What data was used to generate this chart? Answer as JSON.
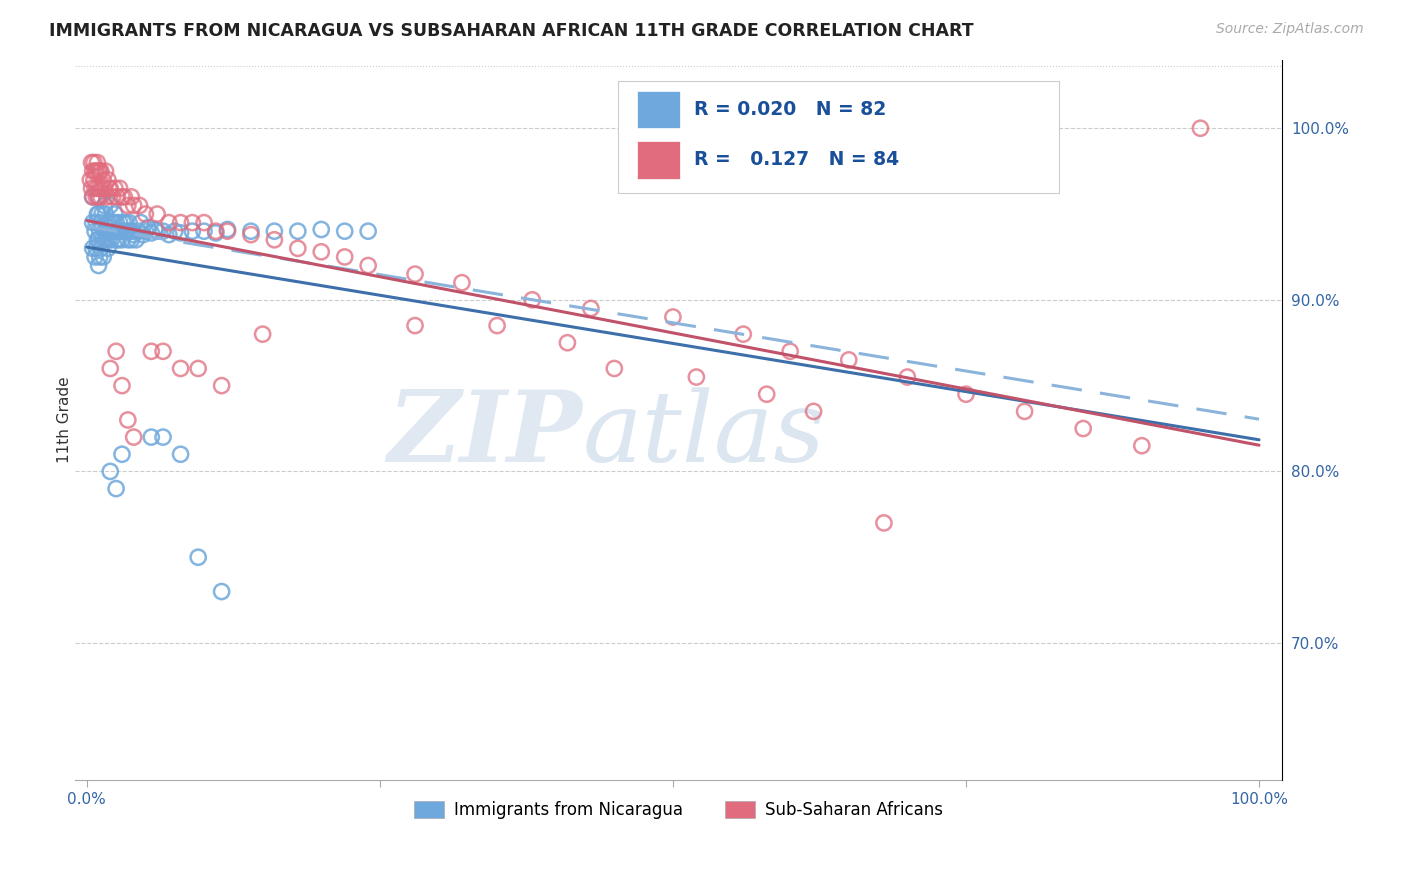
{
  "title": "IMMIGRANTS FROM NICARAGUA VS SUBSAHARAN AFRICAN 11TH GRADE CORRELATION CHART",
  "source": "Source: ZipAtlas.com",
  "ylabel": "11th Grade",
  "legend_blue_r": "0.020",
  "legend_blue_n": "82",
  "legend_pink_r": "0.127",
  "legend_pink_n": "84",
  "legend_label_blue": "Immigrants from Nicaragua",
  "legend_label_pink": "Sub-Saharan Africans",
  "blue_color": "#6fa8dc",
  "pink_color": "#e06c7e",
  "blue_line_color": "#3d6faa",
  "pink_line_color": "#c0526a",
  "blue_dashed_color": "#8ab4dc",
  "watermark_zip": "ZIP",
  "watermark_atlas": "atlas",
  "xlim": [
    -0.01,
    1.02
  ],
  "ylim": [
    0.62,
    1.04
  ],
  "yticks": [
    0.7,
    0.8,
    0.9,
    1.0
  ],
  "ytick_labels": [
    "70.0%",
    "80.0%",
    "90.0%",
    "100.0%"
  ],
  "xtick_positions": [
    0.0,
    0.25,
    0.5,
    0.75,
    1.0
  ],
  "xtick_labels": [
    "0.0%",
    "",
    "",
    "",
    "100.0%"
  ],
  "blue_x": [
    0.005,
    0.005,
    0.005,
    0.007,
    0.007,
    0.008,
    0.008,
    0.009,
    0.009,
    0.01,
    0.01,
    0.01,
    0.01,
    0.011,
    0.011,
    0.012,
    0.012,
    0.013,
    0.013,
    0.014,
    0.015,
    0.015,
    0.016,
    0.016,
    0.017,
    0.018,
    0.018,
    0.019,
    0.02,
    0.02,
    0.021,
    0.022,
    0.023,
    0.024,
    0.025,
    0.025,
    0.026,
    0.027,
    0.028,
    0.029,
    0.03,
    0.031,
    0.032,
    0.033,
    0.034,
    0.035,
    0.036,
    0.037,
    0.038,
    0.039,
    0.04,
    0.042,
    0.044,
    0.046,
    0.048,
    0.05,
    0.052,
    0.055,
    0.058,
    0.06,
    0.065,
    0.07,
    0.075,
    0.08,
    0.09,
    0.1,
    0.11,
    0.12,
    0.14,
    0.16,
    0.18,
    0.2,
    0.22,
    0.24,
    0.02,
    0.025,
    0.03,
    0.055,
    0.065,
    0.08,
    0.095,
    0.115
  ],
  "blue_y": [
    0.93,
    0.945,
    0.96,
    0.925,
    0.94,
    0.93,
    0.945,
    0.935,
    0.95,
    0.92,
    0.935,
    0.95,
    0.96,
    0.925,
    0.94,
    0.93,
    0.945,
    0.935,
    0.95,
    0.925,
    0.94,
    0.955,
    0.935,
    0.95,
    0.94,
    0.93,
    0.945,
    0.935,
    0.94,
    0.955,
    0.935,
    0.945,
    0.94,
    0.95,
    0.935,
    0.945,
    0.94,
    0.935,
    0.945,
    0.94,
    0.935,
    0.945,
    0.94,
    0.945,
    0.94,
    0.935,
    0.945,
    0.94,
    0.935,
    0.94,
    0.938,
    0.935,
    0.94,
    0.945,
    0.938,
    0.94,
    0.942,
    0.939,
    0.941,
    0.94,
    0.94,
    0.938,
    0.94,
    0.939,
    0.94,
    0.94,
    0.939,
    0.941,
    0.94,
    0.94,
    0.94,
    0.941,
    0.94,
    0.94,
    0.8,
    0.79,
    0.81,
    0.82,
    0.82,
    0.81,
    0.75,
    0.73
  ],
  "pink_x": [
    0.003,
    0.004,
    0.004,
    0.005,
    0.005,
    0.006,
    0.006,
    0.007,
    0.007,
    0.008,
    0.008,
    0.009,
    0.009,
    0.01,
    0.01,
    0.011,
    0.011,
    0.012,
    0.012,
    0.013,
    0.014,
    0.015,
    0.016,
    0.017,
    0.018,
    0.019,
    0.02,
    0.022,
    0.024,
    0.026,
    0.028,
    0.03,
    0.032,
    0.035,
    0.038,
    0.04,
    0.045,
    0.05,
    0.06,
    0.07,
    0.08,
    0.09,
    0.1,
    0.11,
    0.12,
    0.14,
    0.16,
    0.18,
    0.2,
    0.22,
    0.24,
    0.28,
    0.32,
    0.38,
    0.43,
    0.5,
    0.56,
    0.6,
    0.65,
    0.7,
    0.75,
    0.8,
    0.85,
    0.9,
    0.95,
    0.02,
    0.025,
    0.03,
    0.035,
    0.04,
    0.055,
    0.065,
    0.08,
    0.095,
    0.115,
    0.15,
    0.28,
    0.35,
    0.41,
    0.45,
    0.52,
    0.58,
    0.62,
    0.68
  ],
  "pink_y": [
    0.97,
    0.965,
    0.98,
    0.96,
    0.975,
    0.97,
    0.98,
    0.965,
    0.975,
    0.96,
    0.975,
    0.965,
    0.98,
    0.96,
    0.975,
    0.965,
    0.975,
    0.96,
    0.975,
    0.965,
    0.97,
    0.965,
    0.975,
    0.96,
    0.97,
    0.965,
    0.965,
    0.96,
    0.965,
    0.96,
    0.965,
    0.96,
    0.96,
    0.955,
    0.96,
    0.955,
    0.955,
    0.95,
    0.95,
    0.945,
    0.945,
    0.945,
    0.945,
    0.94,
    0.94,
    0.938,
    0.935,
    0.93,
    0.928,
    0.925,
    0.92,
    0.915,
    0.91,
    0.9,
    0.895,
    0.89,
    0.88,
    0.87,
    0.865,
    0.855,
    0.845,
    0.835,
    0.825,
    0.815,
    1.0,
    0.86,
    0.87,
    0.85,
    0.83,
    0.82,
    0.87,
    0.87,
    0.86,
    0.86,
    0.85,
    0.88,
    0.885,
    0.885,
    0.875,
    0.86,
    0.855,
    0.845,
    0.835,
    0.77
  ]
}
